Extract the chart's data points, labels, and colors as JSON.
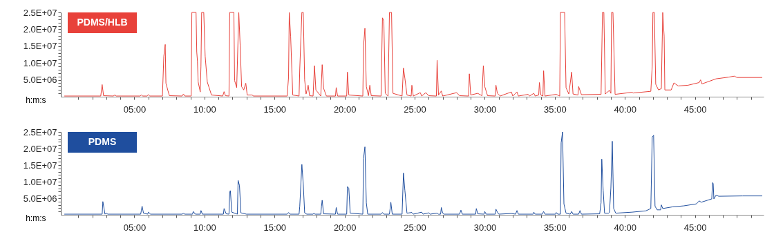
{
  "chart_data": [
    {
      "type": "line",
      "xlabel": "h:m:s",
      "legend": "top left",
      "xlim": [
        -0.25,
        49.9
      ],
      "ylim": [
        0,
        25000000.0
      ],
      "xticks": [
        {
          "value": 1,
          "label": null
        },
        {
          "value": 2,
          "label": null
        },
        {
          "value": 3,
          "label": null
        },
        {
          "value": 4,
          "label": null
        },
        {
          "value": 5,
          "label": "05:00"
        },
        {
          "value": 6,
          "label": null
        },
        {
          "value": 7,
          "label": null
        },
        {
          "value": 8,
          "label": null
        },
        {
          "value": 9,
          "label": null
        },
        {
          "value": 10,
          "label": "10:00"
        },
        {
          "value": 11,
          "label": null
        },
        {
          "value": 12,
          "label": null
        },
        {
          "value": 13,
          "label": null
        },
        {
          "value": 14,
          "label": null
        },
        {
          "value": 15,
          "label": "15:00"
        },
        {
          "value": 16,
          "label": null
        },
        {
          "value": 17,
          "label": null
        },
        {
          "value": 18,
          "label": null
        },
        {
          "value": 19,
          "label": null
        },
        {
          "value": 20,
          "label": "20:00"
        },
        {
          "value": 21,
          "label": null
        },
        {
          "value": 22,
          "label": null
        },
        {
          "value": 23,
          "label": null
        },
        {
          "value": 24,
          "label": null
        },
        {
          "value": 25,
          "label": "25:00"
        },
        {
          "value": 26,
          "label": null
        },
        {
          "value": 27,
          "label": null
        },
        {
          "value": 28,
          "label": null
        },
        {
          "value": 29,
          "label": null
        },
        {
          "value": 30,
          "label": "30:00"
        },
        {
          "value": 31,
          "label": null
        },
        {
          "value": 32,
          "label": null
        },
        {
          "value": 33,
          "label": null
        },
        {
          "value": 34,
          "label": null
        },
        {
          "value": 35,
          "label": "35:00"
        },
        {
          "value": 36,
          "label": null
        },
        {
          "value": 37,
          "label": null
        },
        {
          "value": 38,
          "label": null
        },
        {
          "value": 39,
          "label": null
        },
        {
          "value": 40,
          "label": "40:00"
        },
        {
          "value": 41,
          "label": null
        },
        {
          "value": 42,
          "label": null
        },
        {
          "value": 43,
          "label": null
        },
        {
          "value": 44,
          "label": null
        },
        {
          "value": 45,
          "label": "45:00"
        },
        {
          "value": 46,
          "label": null
        },
        {
          "value": 47,
          "label": null
        },
        {
          "value": 48,
          "label": null
        },
        {
          "value": 49,
          "label": null
        }
      ],
      "yticks": [
        {
          "value": 1000000.0,
          "label": null
        },
        {
          "value": 2000000.0,
          "label": null
        },
        {
          "value": 3000000.0,
          "label": null
        },
        {
          "value": 4000000.0,
          "label": null
        },
        {
          "value": 5000000.0,
          "label": "5.0E+06"
        },
        {
          "value": 6000000.0,
          "label": null
        },
        {
          "value": 7000000.0,
          "label": null
        },
        {
          "value": 8000000.0,
          "label": null
        },
        {
          "value": 9000000.0,
          "label": null
        },
        {
          "value": 10000000.0,
          "label": "1.0E+07"
        },
        {
          "value": 11000000.0,
          "label": null
        },
        {
          "value": 12000000.0,
          "label": null
        },
        {
          "value": 13000000.0,
          "label": null
        },
        {
          "value": 14000000.0,
          "label": null
        },
        {
          "value": 15000000.0,
          "label": "1.5E+07"
        },
        {
          "value": 16000000.0,
          "label": null
        },
        {
          "value": 17000000.0,
          "label": null
        },
        {
          "value": 18000000.0,
          "label": null
        },
        {
          "value": 19000000.0,
          "label": null
        },
        {
          "value": 20000000.0,
          "label": "2.0E+07"
        },
        {
          "value": 21000000.0,
          "label": null
        },
        {
          "value": 22000000.0,
          "label": null
        },
        {
          "value": 23000000.0,
          "label": null
        },
        {
          "value": 24000000.0,
          "label": null
        },
        {
          "value": 25000000.0,
          "label": "2.5E+07"
        }
      ],
      "series": [
        {
          "name": "PDMS/HLB",
          "color": "#e8413a",
          "x": [
            0,
            2.6,
            2.7,
            2.8,
            3.5,
            3.6,
            3.7,
            5.4,
            5.5,
            5.6,
            5.9,
            6.0,
            6.1,
            7.0,
            7.1,
            7.2,
            7.25,
            7.4,
            7.5,
            8.4,
            8.5,
            8.6,
            9.05,
            9.1,
            9.4,
            9.45,
            9.5,
            9.55,
            9.7,
            9.75,
            9.8,
            9.95,
            10.05,
            10.2,
            10.5,
            11.3,
            11.4,
            11.5,
            11.75,
            11.8,
            12.1,
            12.15,
            12.3,
            12.45,
            12.55,
            12.65,
            12.8,
            12.95,
            13.05,
            13.4,
            13.5,
            15.9,
            16.0,
            16.05,
            16.15,
            16.3,
            16.75,
            16.8,
            16.95,
            17.05,
            17.15,
            17.25,
            17.4,
            17.5,
            17.75,
            17.85,
            17.95,
            18.3,
            18.4,
            18.5,
            18.7,
            19.35,
            19.4,
            19.5,
            20.15,
            20.2,
            20.3,
            21.3,
            21.35,
            21.45,
            21.55,
            21.7,
            21.8,
            21.9,
            22.6,
            22.7,
            22.8,
            22.9,
            23.1,
            23.2,
            23.35,
            23.45,
            24.1,
            24.2,
            24.3,
            24.45,
            24.75,
            24.8,
            24.9,
            25.4,
            25.5,
            25.8,
            26.0,
            26.55,
            26.6,
            26.7,
            26.9,
            27.0,
            28.0,
            28.2,
            28.85,
            28.9,
            29.0,
            29.5,
            29.8,
            29.9,
            30.0,
            30.2,
            30.75,
            30.8,
            30.9,
            31.1,
            31.9,
            32.0,
            32.3,
            32.4,
            33.1,
            33.2,
            33.5,
            33.6,
            33.85,
            33.9,
            34.0,
            34.15,
            34.2,
            34.3,
            35.1,
            35.35,
            35.4,
            35.7,
            35.8,
            36.0,
            36.2,
            36.3,
            36.65,
            36.7,
            36.9,
            38.3,
            38.4,
            38.5,
            38.6,
            38.9,
            39.0,
            39.05,
            39.15,
            39.3,
            40.5,
            40.6,
            41.85,
            41.95,
            42.0,
            42.1,
            42.2,
            42.4,
            42.6,
            42.7,
            42.8,
            42.85,
            43.3,
            43.5,
            43.8,
            44.5,
            45.3,
            45.4,
            45.5,
            46.5,
            47.4,
            47.8,
            48.0,
            49.8
          ],
          "values": [
            200000.0,
            200000.0,
            3600000.0,
            300000.0,
            200000.0,
            500000.0,
            200000.0,
            200000.0,
            500000.0,
            200000.0,
            200000.0,
            600000.0,
            200000.0,
            200000.0,
            12000000.0,
            15500000.0,
            4000000.0,
            1700000.0,
            300000.0,
            200000.0,
            800000.0,
            200000.0,
            200000.0,
            25000000.0,
            25000000.0,
            13300000.0,
            10500000.0,
            4400000.0,
            1400000.0,
            9000000.0,
            25000000.0,
            25000000.0,
            12000000.0,
            4400000.0,
            500000.0,
            200000.0,
            1500000.0,
            300000.0,
            200000.0,
            25000000.0,
            25000000.0,
            4800000.0,
            2700000.0,
            25000000.0,
            15000000.0,
            3000000.0,
            2000000.0,
            4000000.0,
            500000.0,
            500000.0,
            200000.0,
            200000.0,
            5800000.0,
            25000000.0,
            18000000.0,
            500000.0,
            200000.0,
            8200000.0,
            25000000.0,
            25000000.0,
            5000000.0,
            800000.0,
            3400000.0,
            300000.0,
            200000.0,
            9200000.0,
            2000000.0,
            200000.0,
            9500000.0,
            2500000.0,
            200000.0,
            200000.0,
            2700000.0,
            200000.0,
            200000.0,
            7300000.0,
            500000.0,
            200000.0,
            15000000.0,
            20300000.0,
            3000000.0,
            300000.0,
            3400000.0,
            300000.0,
            200000.0,
            23400000.0,
            22500000.0,
            1000000.0,
            200000.0,
            25000000.0,
            25000000.0,
            1000000.0,
            200000.0,
            8500000.0,
            5500000.0,
            500000.0,
            200000.0,
            3400000.0,
            200000.0,
            1200000.0,
            200000.0,
            1200000.0,
            300000.0,
            200000.0,
            10800000.0,
            500000.0,
            1700000.0,
            200000.0,
            1200000.0,
            300000.0,
            200000.0,
            6800000.0,
            500000.0,
            1000000.0,
            300000.0,
            9200000.0,
            3000000.0,
            300000.0,
            200000.0,
            3400000.0,
            1000000.0,
            200000.0,
            1400000.0,
            200000.0,
            1400000.0,
            200000.0,
            700000.0,
            200000.0,
            1000000.0,
            200000.0,
            500000.0,
            4200000.0,
            500000.0,
            200000.0,
            7700000.0,
            200000.0,
            700000.0,
            200000.0,
            25000000.0,
            25000000.0,
            2700000.0,
            800000.0,
            7300000.0,
            800000.0,
            500000.0,
            3000000.0,
            600000.0,
            700000.0,
            25000000.0,
            25000000.0,
            800000.0,
            1900000.0,
            1000000.0,
            25000000.0,
            25000000.0,
            700000.0,
            1300000.0,
            1100000.0,
            1600000.0,
            9000000.0,
            25000000.0,
            25000000.0,
            3700000.0,
            2000000.0,
            2400000.0,
            25000000.0,
            18000000.0,
            2000000.0,
            2000000.0,
            4100000.0,
            3200000.0,
            3400000.0,
            4200000.0,
            5000000.0,
            3800000.0,
            5300000.0,
            5800000.0,
            6100000.0,
            5700000.0,
            5700000.0
          ]
        }
      ]
    },
    {
      "type": "line",
      "xlabel": "h:m:s",
      "legend": "top left",
      "xlim": [
        -0.25,
        49.9
      ],
      "ylim": [
        0,
        25000000.0
      ],
      "xticks": [
        {
          "value": 1,
          "label": null
        },
        {
          "value": 2,
          "label": null
        },
        {
          "value": 3,
          "label": null
        },
        {
          "value": 4,
          "label": null
        },
        {
          "value": 5,
          "label": "05:00"
        },
        {
          "value": 6,
          "label": null
        },
        {
          "value": 7,
          "label": null
        },
        {
          "value": 8,
          "label": null
        },
        {
          "value": 9,
          "label": null
        },
        {
          "value": 10,
          "label": "10:00"
        },
        {
          "value": 11,
          "label": null
        },
        {
          "value": 12,
          "label": null
        },
        {
          "value": 13,
          "label": null
        },
        {
          "value": 14,
          "label": null
        },
        {
          "value": 15,
          "label": "15:00"
        },
        {
          "value": 16,
          "label": null
        },
        {
          "value": 17,
          "label": null
        },
        {
          "value": 18,
          "label": null
        },
        {
          "value": 19,
          "label": null
        },
        {
          "value": 20,
          "label": "20:00"
        },
        {
          "value": 21,
          "label": null
        },
        {
          "value": 22,
          "label": null
        },
        {
          "value": 23,
          "label": null
        },
        {
          "value": 24,
          "label": null
        },
        {
          "value": 25,
          "label": "25:00"
        },
        {
          "value": 26,
          "label": null
        },
        {
          "value": 27,
          "label": null
        },
        {
          "value": 28,
          "label": null
        },
        {
          "value": 29,
          "label": null
        },
        {
          "value": 30,
          "label": "30:00"
        },
        {
          "value": 31,
          "label": null
        },
        {
          "value": 32,
          "label": null
        },
        {
          "value": 33,
          "label": null
        },
        {
          "value": 34,
          "label": null
        },
        {
          "value": 35,
          "label": "35:00"
        },
        {
          "value": 36,
          "label": null
        },
        {
          "value": 37,
          "label": null
        },
        {
          "value": 38,
          "label": null
        },
        {
          "value": 39,
          "label": null
        },
        {
          "value": 40,
          "label": "40:00"
        },
        {
          "value": 41,
          "label": null
        },
        {
          "value": 42,
          "label": null
        },
        {
          "value": 43,
          "label": null
        },
        {
          "value": 44,
          "label": null
        },
        {
          "value": 45,
          "label": "45:00"
        },
        {
          "value": 46,
          "label": null
        },
        {
          "value": 47,
          "label": null
        },
        {
          "value": 48,
          "label": null
        },
        {
          "value": 49,
          "label": null
        }
      ],
      "yticks": [
        {
          "value": 1000000.0,
          "label": null
        },
        {
          "value": 2000000.0,
          "label": null
        },
        {
          "value": 3000000.0,
          "label": null
        },
        {
          "value": 4000000.0,
          "label": null
        },
        {
          "value": 5000000.0,
          "label": "5.0E+06"
        },
        {
          "value": 6000000.0,
          "label": null
        },
        {
          "value": 7000000.0,
          "label": null
        },
        {
          "value": 8000000.0,
          "label": null
        },
        {
          "value": 9000000.0,
          "label": null
        },
        {
          "value": 10000000.0,
          "label": "1.0E+07"
        },
        {
          "value": 11000000.0,
          "label": null
        },
        {
          "value": 12000000.0,
          "label": null
        },
        {
          "value": 13000000.0,
          "label": null
        },
        {
          "value": 14000000.0,
          "label": null
        },
        {
          "value": 15000000.0,
          "label": "1.5E+07"
        },
        {
          "value": 16000000.0,
          "label": null
        },
        {
          "value": 17000000.0,
          "label": null
        },
        {
          "value": 18000000.0,
          "label": null
        },
        {
          "value": 19000000.0,
          "label": null
        },
        {
          "value": 20000000.0,
          "label": "2.0E+07"
        },
        {
          "value": 21000000.0,
          "label": null
        },
        {
          "value": 22000000.0,
          "label": null
        },
        {
          "value": 23000000.0,
          "label": null
        },
        {
          "value": 24000000.0,
          "label": null
        },
        {
          "value": 25000000.0,
          "label": "2.5E+07"
        }
      ],
      "series": [
        {
          "name": "PDMS",
          "color": "#1f4e9e",
          "x": [
            0,
            2.7,
            2.75,
            2.85,
            2.9,
            3.0,
            3.1,
            5.45,
            5.5,
            5.55,
            5.65,
            5.95,
            6.0,
            6.15,
            8.4,
            8.5,
            8.6,
            9.15,
            9.2,
            9.35,
            9.7,
            9.75,
            9.85,
            11.35,
            11.4,
            11.55,
            11.75,
            11.8,
            11.85,
            11.95,
            12.35,
            12.4,
            12.5,
            12.6,
            12.9,
            13.0,
            15.9,
            16.0,
            16.1,
            16.75,
            16.8,
            16.95,
            17.05,
            17.15,
            17.3,
            17.75,
            17.8,
            17.9,
            18.3,
            18.35,
            18.4,
            18.5,
            19.35,
            19.4,
            19.5,
            20.15,
            20.2,
            20.3,
            20.4,
            21.3,
            21.35,
            21.45,
            21.55,
            21.65,
            22.6,
            22.7,
            22.8,
            23.2,
            23.3,
            23.4,
            24.1,
            24.2,
            24.3,
            24.45,
            24.8,
            24.9,
            25.5,
            25.6,
            26.0,
            26.1,
            26.6,
            26.7,
            26.85,
            26.9,
            27.0,
            27.1,
            28.2,
            28.3,
            28.4,
            29.35,
            29.4,
            29.5,
            29.95,
            30.0,
            30.1,
            30.75,
            30.8,
            30.9,
            31.0,
            31.9,
            32.2,
            32.3,
            32.4,
            33.45,
            33.5,
            33.6,
            34.1,
            34.2,
            34.3,
            35.05,
            35.1,
            35.2,
            35.4,
            35.45,
            35.55,
            35.65,
            35.8,
            36.1,
            36.2,
            36.3,
            36.7,
            36.8,
            36.9,
            38.2,
            38.3,
            38.35,
            38.45,
            38.55,
            38.85,
            38.9,
            39.0,
            39.1,
            39.2,
            39.35,
            40.5,
            41.5,
            41.85,
            41.95,
            42.05,
            42.15,
            42.3,
            42.55,
            42.6,
            42.7,
            43.4,
            44.2,
            45.1,
            45.3,
            45.45,
            45.9,
            46.2,
            46.25,
            46.3,
            46.35,
            46.5,
            46.7,
            48.4,
            49.8
          ],
          "values": [
            200000.0,
            200000.0,
            4000000.0,
            1500000.0,
            200000.0,
            500000.0,
            200000.0,
            200000.0,
            1400000.0,
            2600000.0,
            500000.0,
            200000.0,
            800000.0,
            200000.0,
            200000.0,
            400000.0,
            200000.0,
            200000.0,
            1000000.0,
            200000.0,
            200000.0,
            1300000.0,
            200000.0,
            200000.0,
            1900000.0,
            300000.0,
            200000.0,
            7000000.0,
            7300000.0,
            800000.0,
            200000.0,
            10400000.0,
            8800000.0,
            600000.0,
            300000.0,
            200000.0,
            200000.0,
            700000.0,
            200000.0,
            200000.0,
            2600000.0,
            15200000.0,
            9200000.0,
            600000.0,
            200000.0,
            200000.0,
            400000.0,
            200000.0,
            200000.0,
            2600000.0,
            4400000.0,
            300000.0,
            200000.0,
            2200000.0,
            200000.0,
            200000.0,
            8500000.0,
            8000000.0,
            500000.0,
            200000.0,
            17000000.0,
            20500000.0,
            3600000.0,
            200000.0,
            200000.0,
            700000.0,
            200000.0,
            200000.0,
            3800000.0,
            200000.0,
            200000.0,
            12600000.0,
            7400000.0,
            500000.0,
            700000.0,
            200000.0,
            800000.0,
            200000.0,
            600000.0,
            200000.0,
            500000.0,
            200000.0,
            200000.0,
            2200000.0,
            500000.0,
            200000.0,
            200000.0,
            1400000.0,
            200000.0,
            200000.0,
            1900000.0,
            300000.0,
            200000.0,
            1000000.0,
            200000.0,
            200000.0,
            1700000.0,
            800000.0,
            200000.0,
            400000.0,
            200000.0,
            1300000.0,
            200000.0,
            200000.0,
            800000.0,
            200000.0,
            200000.0,
            1000000.0,
            200000.0,
            200000.0,
            700000.0,
            200000.0,
            200000.0,
            21700000.0,
            25000000.0,
            3300000.0,
            500000.0,
            200000.0,
            1000000.0,
            200000.0,
            200000.0,
            1300000.0,
            200000.0,
            300000.0,
            3600000.0,
            16800000.0,
            7400000.0,
            500000.0,
            500000.0,
            800000.0,
            8100000.0,
            22200000.0,
            1900000.0,
            500000.0,
            800000.0,
            1200000.0,
            1900000.0,
            23400000.0,
            24000000.0,
            2600000.0,
            1500000.0,
            1500000.0,
            3000000.0,
            1900000.0,
            2400000.0,
            2700000.0,
            3300000.0,
            4200000.0,
            3800000.0,
            4400000.0,
            4800000.0,
            9700000.0,
            9500000.0,
            4800000.0,
            5900000.0,
            5600000.0,
            5700000.0,
            5700000.0
          ]
        }
      ]
    }
  ]
}
